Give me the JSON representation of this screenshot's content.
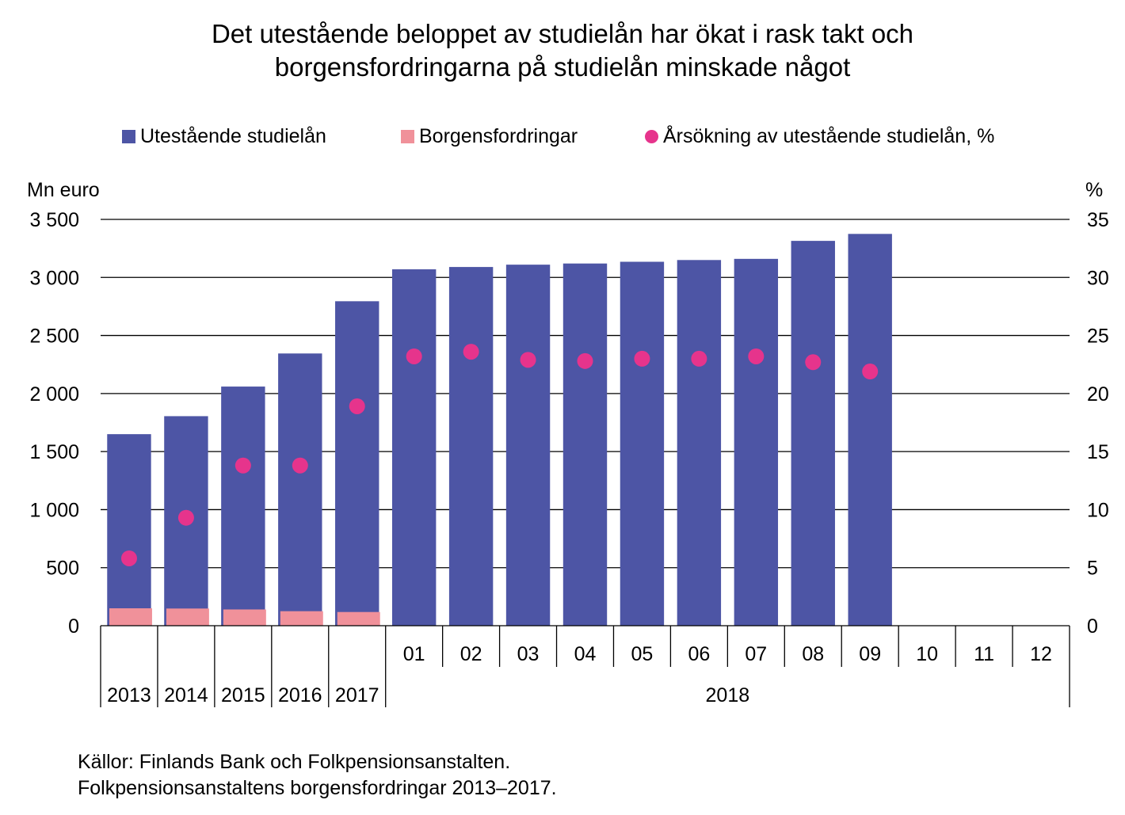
{
  "title_line1": "Det utestående beloppet av studielån har ökat i rask takt och",
  "title_line2": "borgensfordringarna på studielån minskade något",
  "legend": {
    "bars": "Utestående studielån",
    "claims": "Borgensfordringar",
    "dots": "Årsökning av utestående studielån, %"
  },
  "left_unit": "Mn euro",
  "right_unit": "%",
  "source_line1": "Källor: Finlands Bank och Folkpensionsanstalten.",
  "source_line2": "Folkpensionsanstaltens borgensfordringar 2013–2017.",
  "colors": {
    "bars": "#4d55a5",
    "claims": "#f0919a",
    "dots": "#e6348c",
    "grid": "#000000"
  },
  "chart_data": {
    "type": "bar",
    "categories": [
      "2013",
      "2014",
      "2015",
      "2016",
      "2017",
      "01",
      "02",
      "03",
      "04",
      "05",
      "06",
      "07",
      "08",
      "09",
      "10",
      "11",
      "12"
    ],
    "group_labels": [
      {
        "label": "2013",
        "from": 0,
        "to": 0
      },
      {
        "label": "2014",
        "from": 1,
        "to": 1
      },
      {
        "label": "2015",
        "from": 2,
        "to": 2
      },
      {
        "label": "2016",
        "from": 3,
        "to": 3
      },
      {
        "label": "2017",
        "from": 4,
        "to": 4
      },
      {
        "label": "2018",
        "from": 5,
        "to": 16
      }
    ],
    "series": [
      {
        "name": "Utestående studielån",
        "kind": "bar",
        "axis": "left",
        "values": [
          1650,
          1805,
          2060,
          2345,
          2795,
          3070,
          3090,
          3110,
          3120,
          3135,
          3150,
          3160,
          3315,
          3375,
          null,
          null,
          null
        ]
      },
      {
        "name": "Borgensfordringar",
        "kind": "bar",
        "axis": "left",
        "values": [
          150,
          148,
          140,
          125,
          118,
          null,
          null,
          null,
          null,
          null,
          null,
          null,
          null,
          null,
          null,
          null,
          null
        ]
      },
      {
        "name": "Årsökning av utestående studielån, %",
        "kind": "scatter",
        "axis": "right",
        "values": [
          5.8,
          9.3,
          13.8,
          13.8,
          18.9,
          23.2,
          23.6,
          22.9,
          22.8,
          23.0,
          23.0,
          23.2,
          22.7,
          21.9,
          null,
          null,
          null
        ]
      }
    ],
    "y_left": {
      "min": 0,
      "max": 3500,
      "ticks": [
        0,
        500,
        1000,
        1500,
        2000,
        2500,
        3000,
        3500
      ],
      "tick_labels": [
        "0",
        "500",
        "1 000",
        "1 500",
        "2 000",
        "2 500",
        "3 000",
        "3 500"
      ]
    },
    "y_right": {
      "min": 0,
      "max": 35,
      "ticks": [
        0,
        5,
        10,
        15,
        20,
        25,
        30,
        35
      ],
      "tick_labels": [
        "0",
        "5",
        "10",
        "15",
        "20",
        "25",
        "30",
        "35"
      ]
    },
    "grid": true,
    "legend_position": "top"
  }
}
